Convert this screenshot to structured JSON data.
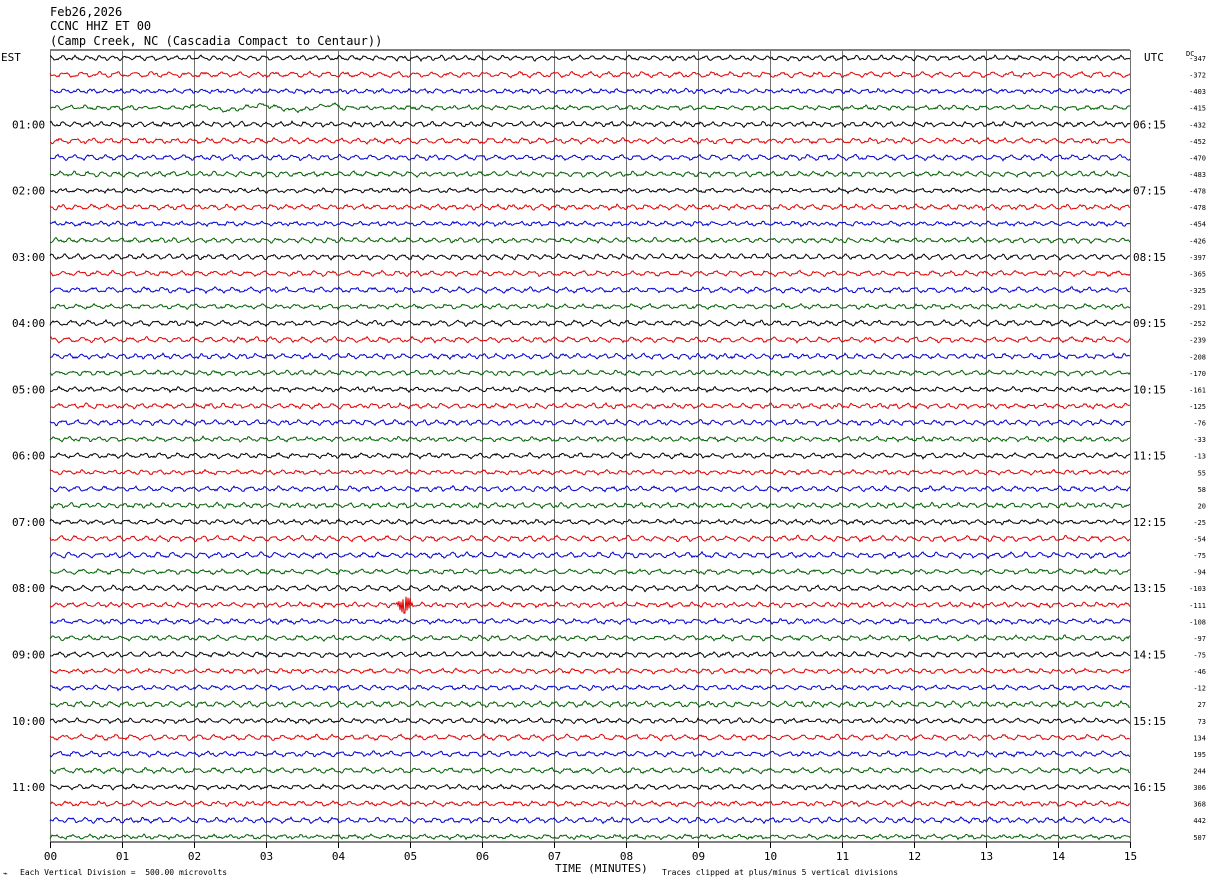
{
  "header": {
    "date": "Feb26,2026",
    "station": "CCNC HHZ ET 00",
    "location": "(Camp Creek, NC (Cascadia Compact to Centaur))"
  },
  "chart_data": {
    "type": "line",
    "title": "CCNC HHZ ET 00",
    "xlabel": "TIME (MINUTES)",
    "xlim": [
      0,
      15
    ],
    "x_ticks": [
      "00",
      "01",
      "02",
      "03",
      "04",
      "05",
      "06",
      "07",
      "08",
      "09",
      "10",
      "11",
      "12",
      "13",
      "14",
      "15"
    ],
    "left_axis_label": "EST",
    "right_axis_label": "UTC",
    "dc_label": "DC",
    "trace_colors": [
      "#000000",
      "#e00000",
      "#0000d0",
      "#006000"
    ],
    "hour_labels": [
      {
        "row": 4,
        "est": "01:00",
        "utc": "06:15"
      },
      {
        "row": 8,
        "est": "02:00",
        "utc": "07:15"
      },
      {
        "row": 12,
        "est": "03:00",
        "utc": "08:15"
      },
      {
        "row": 16,
        "est": "04:00",
        "utc": "09:15"
      },
      {
        "row": 20,
        "est": "05:00",
        "utc": "10:15"
      },
      {
        "row": 24,
        "est": "06:00",
        "utc": "11:15"
      },
      {
        "row": 28,
        "est": "07:00",
        "utc": "12:15"
      },
      {
        "row": 32,
        "est": "08:00",
        "utc": "13:15"
      },
      {
        "row": 36,
        "est": "09:00",
        "utc": "14:15"
      },
      {
        "row": 40,
        "est": "10:00",
        "utc": "15:15"
      },
      {
        "row": 44,
        "est": "11:00",
        "utc": "16:15"
      }
    ],
    "dc_offsets": [
      "-347",
      "-372",
      "-403",
      "-415",
      "-432",
      "-452",
      "-470",
      "-483",
      "-478",
      "-478",
      "-454",
      "-426",
      "-397",
      "-365",
      "-325",
      "-291",
      "-252",
      "-239",
      "-208",
      "-170",
      "-161",
      "-125",
      "-76",
      "-33",
      "-13",
      "55",
      "58",
      "20",
      "-25",
      "-54",
      "-75",
      "-94",
      "-103",
      "-111",
      "-108",
      "-97",
      "-75",
      "-46",
      "-12",
      "27",
      "73",
      "134",
      "195",
      "244",
      "306",
      "368",
      "442",
      "507"
    ],
    "events": [
      {
        "row": 33,
        "minute": 4.93,
        "note": "burst"
      }
    ],
    "vertical_scale": "Each Vertical Division =  500.00 microvolts",
    "clip_note": "Traces clipped at plus/minus 5 vertical divisions"
  }
}
